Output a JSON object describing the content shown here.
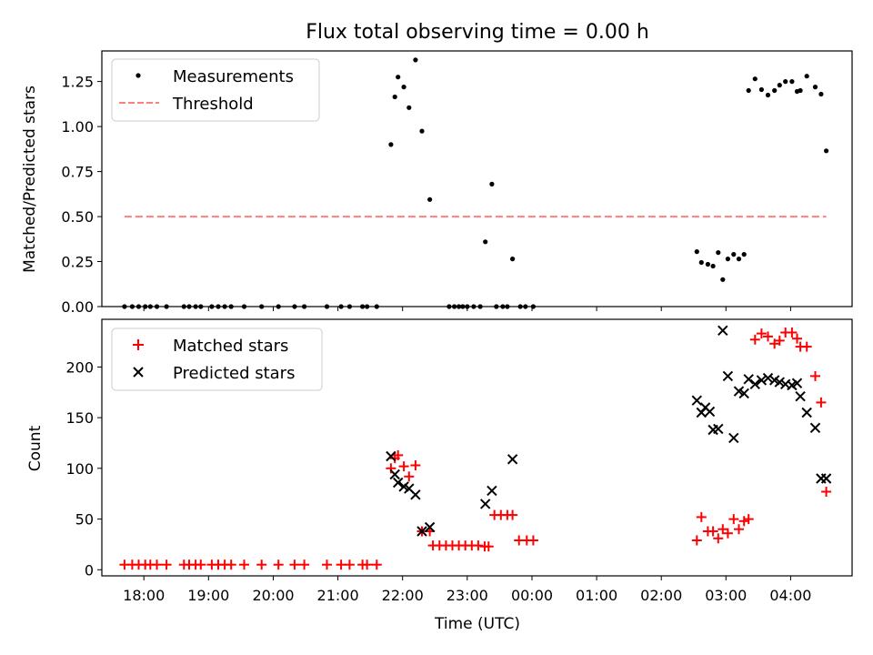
{
  "title": "Flux total observing time = 0.00 h",
  "chart_data": [
    {
      "type": "scatter",
      "panel": "top",
      "ylabel": "Matched/Predicted stars",
      "xlabel": "",
      "ylim": [
        0,
        1.42
      ],
      "xlim": [
        17.35,
        28.95
      ],
      "x_unit": "hours since 00:00 UTC on the first day",
      "yticks": [
        0.0,
        0.25,
        0.5,
        0.75,
        1.0,
        1.25
      ],
      "ytick_labels": [
        "0.00",
        "0.25",
        "0.50",
        "0.75",
        "1.00",
        "1.25"
      ],
      "legend": {
        "position": "top-left",
        "entries": [
          "Measurements",
          "Threshold"
        ]
      },
      "series": [
        {
          "name": "Measurements",
          "style": "dot",
          "color": "#000000",
          "x": [
            17.7,
            17.82,
            17.92,
            18.02,
            18.1,
            18.2,
            18.35,
            18.62,
            18.7,
            18.8,
            18.88,
            19.05,
            19.15,
            19.25,
            19.35,
            19.55,
            19.82,
            20.08,
            20.33,
            20.48,
            20.83,
            21.05,
            21.18,
            21.38,
            21.45,
            21.6,
            21.82,
            21.88,
            21.93,
            22.02,
            22.1,
            22.2,
            22.3,
            22.42,
            22.72,
            22.8,
            22.87,
            22.93,
            23.0,
            23.1,
            23.2,
            23.28,
            23.38,
            23.45,
            23.55,
            23.62,
            23.7,
            23.82,
            23.9,
            24.02,
            28.15,
            28.25,
            28.38,
            28.47,
            28.55
          ],
          "y": [
            0.0,
            0.0,
            0.0,
            0.0,
            0.0,
            0.0,
            0.0,
            0.0,
            0.0,
            0.0,
            0.0,
            0.0,
            0.0,
            0.0,
            0.0,
            0.0,
            0.0,
            0.0,
            0.0,
            0.0,
            0.0,
            0.0,
            0.0,
            0.0,
            0.0,
            0.0,
            0.9,
            1.165,
            1.275,
            1.22,
            1.105,
            1.37,
            0.975,
            0.595,
            0.0,
            0.0,
            0.0,
            0.0,
            0.0,
            0.0,
            0.0,
            0.36,
            0.68,
            0.0,
            0.0,
            0.0,
            0.265,
            0.0,
            0.0,
            0.0,
            1.2,
            1.28,
            1.22,
            1.18,
            0.865
          ]
        },
        {
          "name": "",
          "style": "dot",
          "color": "#000000",
          "x": [
            26.55,
            26.62,
            26.72,
            26.8,
            26.88,
            26.95,
            27.03,
            27.12,
            27.2,
            27.28,
            27.35,
            27.45,
            27.55,
            27.65,
            27.75,
            27.83,
            27.92,
            28.02,
            28.1
          ],
          "y": [
            0.305,
            0.245,
            0.235,
            0.225,
            0.3,
            0.15,
            0.265,
            0.29,
            0.265,
            0.29,
            1.2,
            1.265,
            1.205,
            1.175,
            1.2,
            1.23,
            1.25,
            1.25,
            1.195
          ]
        },
        {
          "name": "Threshold",
          "style": "dashed",
          "color": "#ff7f7f",
          "x": [
            17.7,
            28.55
          ],
          "y": [
            0.5,
            0.5
          ]
        }
      ]
    },
    {
      "type": "scatter",
      "panel": "bottom",
      "ylabel": "Count",
      "xlabel": "Time (UTC)",
      "ylim": [
        -6,
        247
      ],
      "xlim": [
        17.35,
        28.95
      ],
      "x_unit": "hours since 00:00 UTC on the first day",
      "yticks": [
        0,
        50,
        100,
        150,
        200
      ],
      "ytick_labels": [
        "0",
        "50",
        "100",
        "150",
        "200"
      ],
      "xticks": [
        18,
        19,
        20,
        21,
        22,
        23,
        24,
        25,
        26,
        27,
        28
      ],
      "xtick_labels": [
        "18:00",
        "19:00",
        "20:00",
        "21:00",
        "22:00",
        "23:00",
        "00:00",
        "01:00",
        "02:00",
        "03:00",
        "04:00"
      ],
      "legend": {
        "position": "top-left",
        "entries": [
          "Matched stars",
          "Predicted stars"
        ]
      },
      "series": [
        {
          "name": "Matched stars",
          "style": "plus",
          "color": "#ff0000",
          "x": [
            17.7,
            17.82,
            17.92,
            18.02,
            18.1,
            18.2,
            18.35,
            18.62,
            18.7,
            18.8,
            18.88,
            19.05,
            19.15,
            19.25,
            19.35,
            19.55,
            19.82,
            20.08,
            20.33,
            20.48,
            20.83,
            21.05,
            21.18,
            21.38,
            21.45,
            21.6,
            21.82,
            21.88,
            21.93,
            22.02,
            22.1,
            22.2,
            22.3,
            22.42,
            22.47,
            22.57,
            22.67,
            22.77,
            22.87,
            22.97,
            23.07,
            23.17,
            23.27,
            23.33,
            23.42,
            23.52,
            23.62,
            23.7,
            23.8,
            23.92,
            24.02,
            26.55,
            26.62,
            26.72,
            26.8,
            26.88,
            26.95,
            27.03,
            27.12,
            27.2,
            27.28,
            27.35,
            27.45,
            27.55,
            27.65,
            27.75,
            27.83,
            27.92,
            28.02,
            28.1,
            28.15,
            28.25,
            28.38,
            28.47,
            28.55
          ],
          "y": [
            5,
            5,
            5,
            5,
            5,
            5,
            5,
            5,
            5,
            5,
            5,
            5,
            5,
            5,
            5,
            5,
            5,
            5,
            5,
            5,
            5,
            5,
            5,
            5,
            5,
            5,
            100,
            110,
            113,
            102,
            92,
            103,
            38,
            38,
            24,
            24,
            24,
            24,
            24,
            24,
            24,
            24,
            23,
            23,
            54,
            54,
            54,
            54,
            29,
            29,
            29,
            29,
            52,
            38,
            38,
            31,
            40,
            36,
            50,
            40,
            48,
            50,
            227,
            233,
            230,
            223,
            226,
            234,
            234,
            228,
            220,
            220,
            191,
            165,
            77
          ]
        },
        {
          "name": "Predicted stars",
          "style": "x",
          "color": "#000000",
          "x": [
            21.82,
            21.88,
            21.93,
            22.02,
            22.1,
            22.2,
            22.3,
            22.42,
            23.28,
            23.38,
            23.7,
            26.55,
            26.62,
            26.68,
            26.75,
            26.8,
            26.88,
            26.95,
            27.03,
            27.12,
            27.2,
            27.28,
            27.35,
            27.45,
            27.55,
            27.65,
            27.75,
            27.83,
            27.92,
            28.02,
            28.1,
            28.15,
            28.25,
            28.38,
            28.47,
            28.55
          ],
          "y": [
            112,
            94,
            86,
            82,
            80,
            74,
            38,
            42,
            65,
            78,
            109,
            167,
            155,
            160,
            156,
            138,
            139,
            236,
            191,
            130,
            176,
            174,
            188,
            183,
            187,
            189,
            187,
            185,
            183,
            182,
            184,
            171,
            155,
            140,
            90,
            90
          ]
        }
      ]
    }
  ]
}
